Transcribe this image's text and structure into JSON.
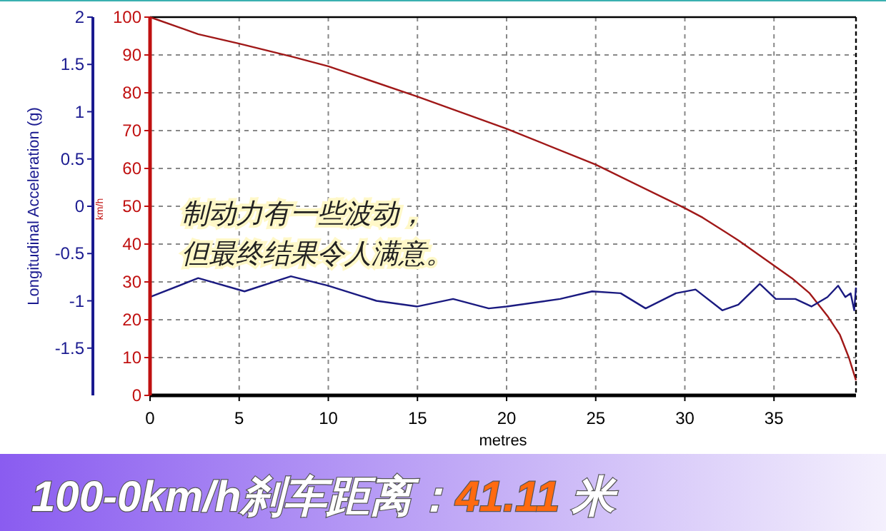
{
  "chart_data": {
    "type": "line",
    "title": "100-0km/h刹车距离：41.11 米",
    "xlabel": "metres",
    "ylabel": "km/h",
    "y2label": "Longitudinal Acceleration (g)",
    "annotations": [
      "制动力有一些波动，",
      "但最终结果令人满意。"
    ],
    "xlim": [
      0,
      39.6
    ],
    "xticks": [
      0,
      5,
      10,
      15,
      20,
      25,
      30,
      35
    ],
    "ylim": [
      0,
      100
    ],
    "yticks": [
      0,
      10,
      20,
      30,
      40,
      50,
      60,
      70,
      80,
      90,
      100
    ],
    "y2lim": [
      -2,
      2
    ],
    "y2ticks": [
      -1.5,
      -1,
      -0.5,
      0,
      0.5,
      1,
      1.5,
      2
    ],
    "grid": true,
    "series": [
      {
        "color": "#a01818",
        "x": [
          0,
          2.7,
          5,
          8,
          10,
          15,
          20,
          25,
          30,
          31,
          33,
          34.5,
          36,
          37,
          38,
          38.7,
          39.2,
          39.6
        ],
        "values": [
          100,
          95.5,
          93,
          89.5,
          87,
          79,
          70.5,
          61,
          49.5,
          47,
          41,
          36,
          31,
          27,
          21,
          16,
          10,
          4
        ]
      },
      {
        "color": "#1a1a80",
        "axis": "y2",
        "x": [
          0,
          2.7,
          5.3,
          7.9,
          10,
          12.7,
          15,
          17,
          19,
          20,
          23,
          24.8,
          26.4,
          27.8,
          29.5,
          30.6,
          32.1,
          33,
          34.2,
          35.1,
          36.2,
          37.1,
          38,
          38.6,
          39,
          39.3,
          39.5,
          39.6
        ],
        "values": [
          -0.96,
          -0.76,
          -0.9,
          -0.74,
          -0.84,
          -1.0,
          -1.06,
          -0.98,
          -1.08,
          -1.06,
          -0.98,
          -0.9,
          -0.92,
          -1.08,
          -0.92,
          -0.88,
          -1.1,
          -1.04,
          -0.82,
          -0.98,
          -0.98,
          -1.06,
          -0.96,
          -0.84,
          -0.96,
          -0.92,
          -1.1,
          -0.86
        ]
      }
    ]
  }
}
